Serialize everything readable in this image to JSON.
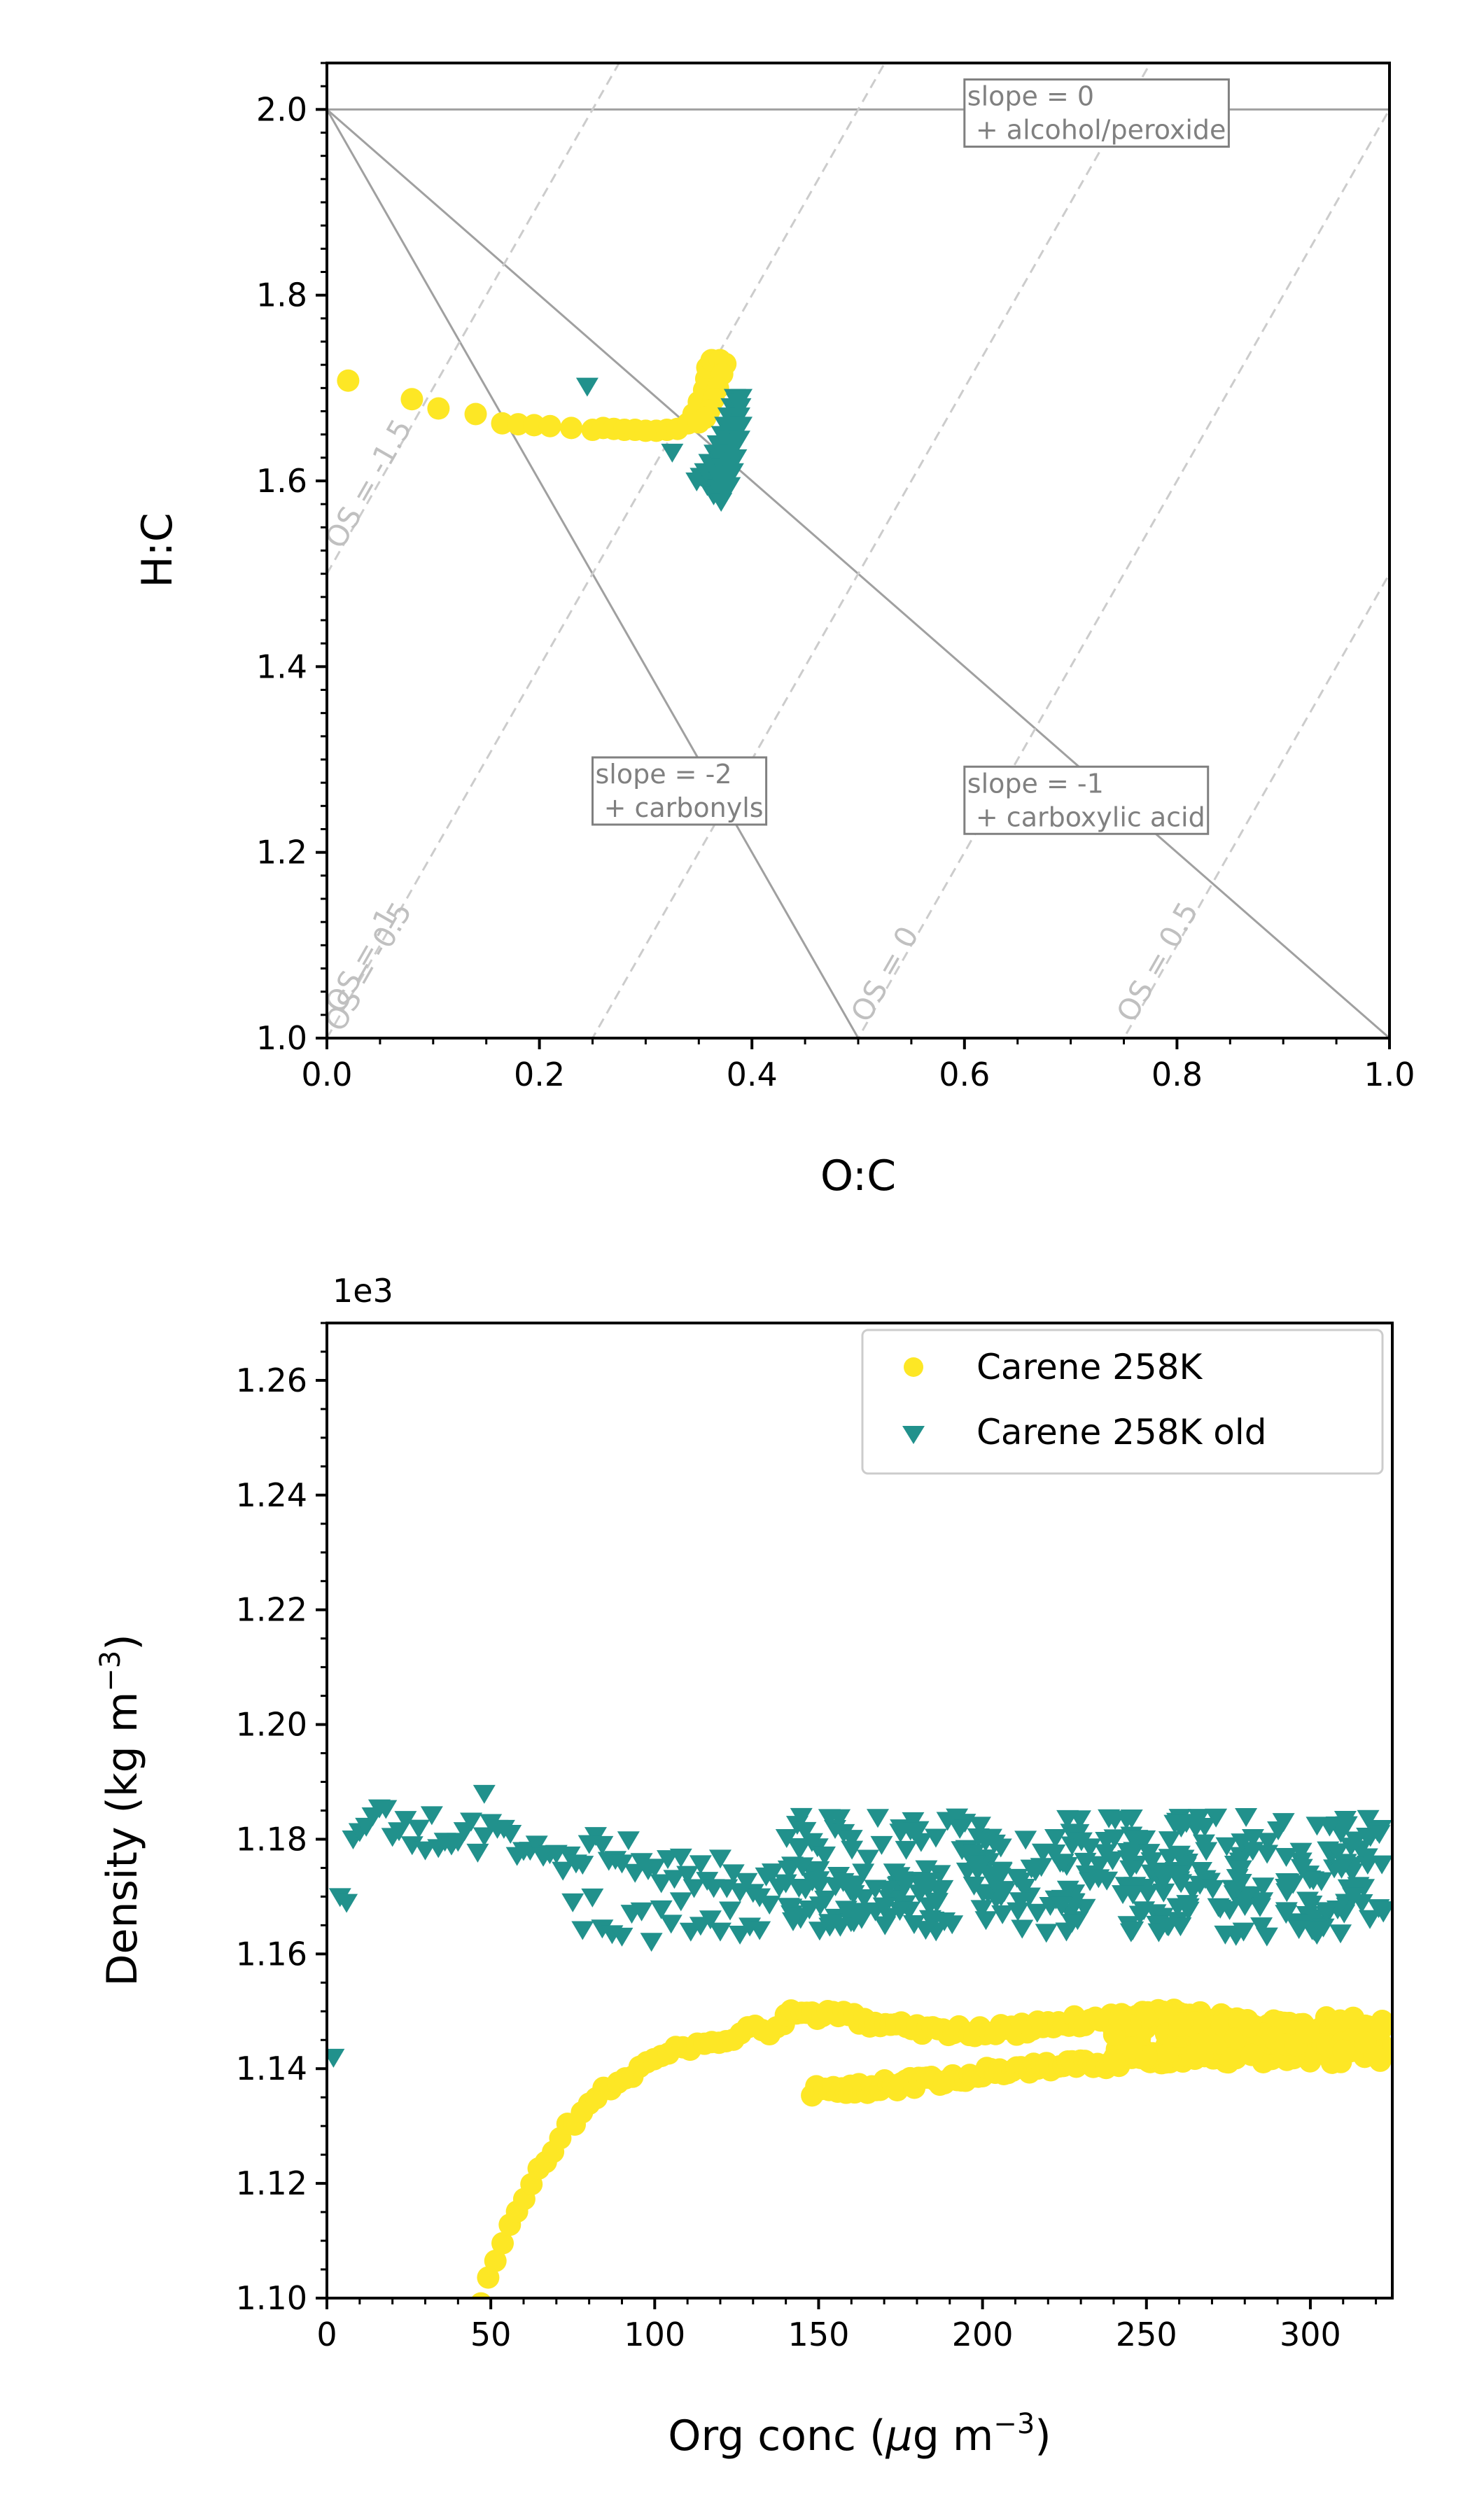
{
  "colors": {
    "series_1": "#fde725",
    "series_2": "#21918c",
    "ref_line": "#a0a0a0",
    "os_line": "#cccccc"
  },
  "chart_data": [
    {
      "type": "scatter",
      "xlabel": "O:C",
      "ylabel": "H:C",
      "xlim": [
        0.0,
        1.0
      ],
      "ylim": [
        1.0,
        2.05
      ],
      "x_ticks": [
        "0.0",
        "0.2",
        "0.4",
        "0.6",
        "0.8",
        "1.0"
      ],
      "y_ticks": [
        "1.0",
        "1.2",
        "1.4",
        "1.6",
        "1.8",
        "2.0"
      ],
      "grid": false,
      "reference_lines": [
        {
          "label": "slope = 0\n + alcohol/peroxide",
          "slope": 0,
          "intercept": 2.0
        },
        {
          "label": "slope = -2\n + carbonyls",
          "slope": -2,
          "intercept": 2.0
        },
        {
          "label": "slope = -1\n + carboxylic acid",
          "slope": -1,
          "intercept": 2.0
        }
      ],
      "os_lines": [
        {
          "label": "OS = -1.5",
          "os": -1.5
        },
        {
          "label": "OS = -1",
          "os": -1
        },
        {
          "label": "OS = -0.5",
          "os": -0.5
        },
        {
          "label": "OS = 0",
          "os": 0
        },
        {
          "label": "OS = 0.5",
          "os": 0.5
        }
      ],
      "series": [
        {
          "marker": "circle",
          "points": [
            [
              0.02,
              1.708
            ],
            [
              0.08,
              1.688
            ],
            [
              0.105,
              1.678
            ],
            [
              0.14,
              1.672
            ],
            [
              0.165,
              1.662
            ],
            [
              0.18,
              1.661
            ],
            [
              0.195,
              1.66
            ],
            [
              0.21,
              1.659
            ],
            [
              0.23,
              1.657
            ],
            [
              0.25,
              1.655
            ],
            [
              0.26,
              1.657
            ],
            [
              0.27,
              1.656
            ],
            [
              0.28,
              1.655
            ],
            [
              0.29,
              1.655
            ],
            [
              0.3,
              1.654
            ],
            [
              0.31,
              1.654
            ],
            [
              0.32,
              1.655
            ],
            [
              0.33,
              1.656
            ],
            [
              0.34,
              1.662
            ],
            [
              0.345,
              1.672
            ],
            [
              0.35,
              1.685
            ],
            [
              0.355,
              1.698
            ],
            [
              0.357,
              1.71
            ],
            [
              0.358,
              1.722
            ],
            [
              0.362,
              1.73
            ],
            [
              0.37,
              1.73
            ],
            [
              0.375,
              1.726
            ],
            [
              0.372,
              1.715
            ],
            [
              0.368,
              1.7
            ],
            [
              0.364,
              1.688
            ],
            [
              0.36,
              1.676
            ],
            [
              0.356,
              1.668
            ],
            [
              0.35,
              1.663
            ]
          ]
        },
        {
          "marker": "triangle-down",
          "points": [
            [
              0.245,
              1.702
            ],
            [
              0.325,
              1.631
            ],
            [
              0.348,
              1.6
            ],
            [
              0.352,
              1.605
            ],
            [
              0.356,
              1.61
            ],
            [
              0.358,
              1.595
            ],
            [
              0.36,
              1.62
            ],
            [
              0.362,
              1.6
            ],
            [
              0.364,
              1.585
            ],
            [
              0.365,
              1.63
            ],
            [
              0.366,
              1.61
            ],
            [
              0.368,
              1.64
            ],
            [
              0.368,
              1.592
            ],
            [
              0.37,
              1.6
            ],
            [
              0.37,
              1.625
            ],
            [
              0.371,
              1.578
            ],
            [
              0.372,
              1.65
            ],
            [
              0.372,
              1.615
            ],
            [
              0.374,
              1.59
            ],
            [
              0.374,
              1.635
            ],
            [
              0.375,
              1.66
            ],
            [
              0.376,
              1.605
            ],
            [
              0.377,
              1.645
            ],
            [
              0.378,
              1.62
            ],
            [
              0.378,
              1.67
            ],
            [
              0.379,
              1.595
            ],
            [
              0.38,
              1.655
            ],
            [
              0.38,
              1.63
            ],
            [
              0.381,
              1.68
            ],
            [
              0.382,
              1.61
            ],
            [
              0.383,
              1.665
            ],
            [
              0.383,
              1.64
            ],
            [
              0.384,
              1.69
            ],
            [
              0.385,
              1.675
            ],
            [
              0.385,
              1.625
            ],
            [
              0.386,
              1.685
            ],
            [
              0.387,
              1.655
            ],
            [
              0.388,
              1.67
            ],
            [
              0.388,
              1.645
            ],
            [
              0.389,
              1.68
            ],
            [
              0.39,
              1.66
            ],
            [
              0.39,
              1.69
            ]
          ]
        }
      ]
    },
    {
      "type": "scatter",
      "xlabel_base": "Org conc (",
      "xlabel_mu": "μ",
      "xlabel_unit": "g m",
      "xlabel_exp": "−3",
      "xlabel_end": ")",
      "ylabel_base": "Density (kg m",
      "ylabel_exp": "−3",
      "ylabel_end": ")",
      "y_offset": "1e3",
      "xlim": [
        0,
        325
      ],
      "ylim": [
        1.1,
        1.27
      ],
      "x_ticks": [
        "0",
        "50",
        "100",
        "150",
        "200",
        "250",
        "300"
      ],
      "y_ticks": [
        "1.10",
        "1.12",
        "1.14",
        "1.16",
        "1.18",
        "1.20",
        "1.22",
        "1.24",
        "1.26"
      ],
      "grid": false,
      "legend_position": "top-right",
      "series": [
        {
          "name": "Carene 258K",
          "marker": "circle"
        },
        {
          "name": "Carene 258K old",
          "marker": "triangle-down"
        }
      ]
    }
  ]
}
